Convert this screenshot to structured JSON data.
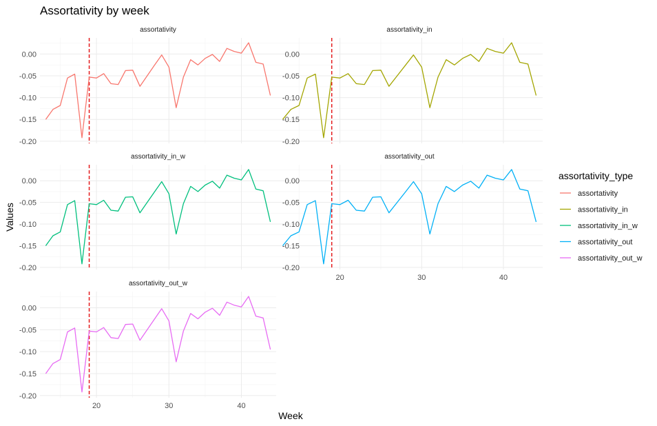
{
  "chart_data": {
    "type": "line",
    "title": "Assortativity by week",
    "xlabel": "Week",
    "ylabel": "Values",
    "x_ticks": [
      20,
      30,
      40
    ],
    "y_ticks": [
      0.0,
      -0.05,
      -0.1,
      -0.15,
      -0.2
    ],
    "y_tick_labels": [
      "0.00",
      "-0.05",
      "-0.10",
      "-0.15",
      "-0.20"
    ],
    "xlim": [
      12.2,
      44.8
    ],
    "ylim": [
      -0.205,
      0.037
    ],
    "vline_x": 19,
    "vline_color": "#E41A1C",
    "legend_title": "assortativity_type",
    "legend_position": "right",
    "grid": true,
    "x": [
      13,
      14,
      15,
      16,
      17,
      18,
      19,
      20,
      21,
      22,
      23,
      24,
      25,
      26,
      27,
      28,
      29,
      30,
      31,
      32,
      33,
      34,
      35,
      36,
      37,
      38,
      39,
      40,
      41,
      42,
      43,
      44
    ],
    "series": [
      {
        "name": "assortativity",
        "color": "#F8766D",
        "values": [
          -0.15,
          -0.127,
          -0.118,
          -0.055,
          -0.046,
          -0.192,
          -0.053,
          -0.055,
          -0.045,
          -0.068,
          -0.07,
          -0.038,
          -0.037,
          -0.074,
          -0.05,
          -0.026,
          -0.002,
          -0.03,
          -0.123,
          -0.053,
          -0.013,
          -0.025,
          -0.01,
          -0.001,
          -0.017,
          0.013,
          0.006,
          0.002,
          0.026,
          -0.019,
          -0.023,
          -0.095
        ]
      },
      {
        "name": "assortativity_in",
        "color": "#A3A500",
        "values": [
          -0.15,
          -0.127,
          -0.118,
          -0.055,
          -0.046,
          -0.192,
          -0.053,
          -0.055,
          -0.045,
          -0.068,
          -0.07,
          -0.038,
          -0.037,
          -0.074,
          -0.05,
          -0.026,
          -0.002,
          -0.03,
          -0.123,
          -0.053,
          -0.013,
          -0.025,
          -0.01,
          -0.001,
          -0.017,
          0.013,
          0.006,
          0.002,
          0.026,
          -0.019,
          -0.023,
          -0.095
        ]
      },
      {
        "name": "assortativity_in_w",
        "color": "#00BF7D",
        "values": [
          -0.15,
          -0.127,
          -0.118,
          -0.055,
          -0.046,
          -0.192,
          -0.053,
          -0.055,
          -0.045,
          -0.068,
          -0.07,
          -0.038,
          -0.037,
          -0.074,
          -0.05,
          -0.026,
          -0.002,
          -0.03,
          -0.123,
          -0.053,
          -0.013,
          -0.025,
          -0.01,
          -0.001,
          -0.017,
          0.013,
          0.006,
          0.002,
          0.026,
          -0.019,
          -0.023,
          -0.095
        ]
      },
      {
        "name": "assortativity_out",
        "color": "#00B0F6",
        "values": [
          -0.15,
          -0.127,
          -0.118,
          -0.055,
          -0.046,
          -0.192,
          -0.053,
          -0.055,
          -0.045,
          -0.068,
          -0.07,
          -0.038,
          -0.037,
          -0.074,
          -0.05,
          -0.026,
          -0.002,
          -0.03,
          -0.123,
          -0.053,
          -0.013,
          -0.025,
          -0.01,
          -0.001,
          -0.017,
          0.013,
          0.006,
          0.002,
          0.026,
          -0.019,
          -0.023,
          -0.095
        ]
      },
      {
        "name": "assortativity_out_w",
        "color": "#E76BF3",
        "values": [
          -0.15,
          -0.127,
          -0.118,
          -0.055,
          -0.046,
          -0.192,
          -0.053,
          -0.055,
          -0.045,
          -0.068,
          -0.07,
          -0.038,
          -0.037,
          -0.074,
          -0.05,
          -0.026,
          -0.002,
          -0.03,
          -0.123,
          -0.053,
          -0.013,
          -0.025,
          -0.01,
          -0.001,
          -0.017,
          0.013,
          0.006,
          0.002,
          0.026,
          -0.019,
          -0.023,
          -0.095
        ]
      }
    ]
  }
}
